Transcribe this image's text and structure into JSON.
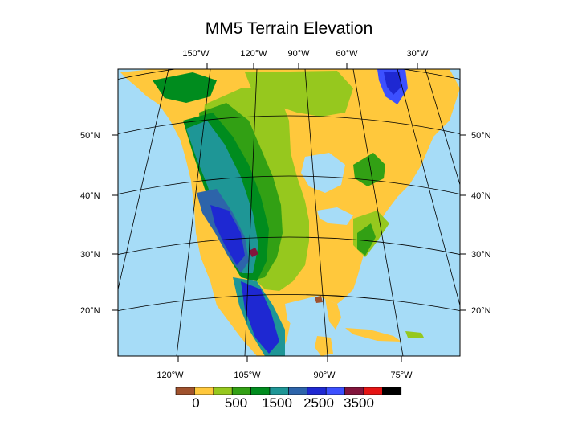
{
  "title": "MM5 Terrain Elevation",
  "top_lon_labels": [
    "150°W",
    "120°W",
    "90°W",
    "60°W",
    "30°W"
  ],
  "bottom_lon_labels": [
    "120°W",
    "105°W",
    "90°W",
    "75°W"
  ],
  "lat_labels": [
    "50°N",
    "40°N",
    "30°N",
    "20°N"
  ],
  "colorbar": {
    "labels": [
      "0",
      "500",
      "1500",
      "2500",
      "3500"
    ],
    "colors": [
      "#a0522d",
      "#ffc83c",
      "#96c81e",
      "#32a014",
      "#008c1e",
      "#1e9696",
      "#2d64aa",
      "#1e28d2",
      "#3c50ff",
      "#82143c",
      "#e61414",
      "#000000"
    ]
  },
  "colors": {
    "ocean": "#a6dcf7",
    "lowland": "#ffc83c",
    "plain": "#96c81e",
    "hills": "#32a014",
    "upland": "#008c1e",
    "mid": "#1e9696",
    "high": "#2d64aa",
    "higher": "#1e28d2",
    "highest": "#3c50ff",
    "peak": "#82143c",
    "brown": "#a0522d"
  }
}
